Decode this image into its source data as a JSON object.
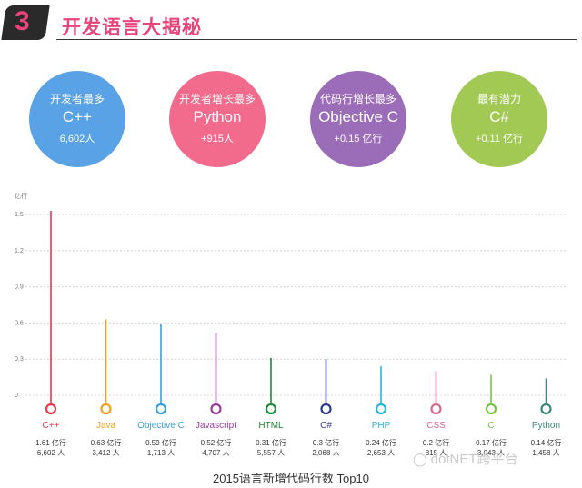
{
  "header": {
    "number": "3",
    "title": "开发语言大揭秘"
  },
  "stats": [
    {
      "title": "开发者最多",
      "main": "C++",
      "sub": "6,602人",
      "color": "#5aa2e6"
    },
    {
      "title": "开发者增长最多",
      "main": "Python",
      "sub": "+915人",
      "color": "#f26b8d"
    },
    {
      "title": "代码行增长最多",
      "main": "Objective C",
      "sub": "+0.15 亿行",
      "color": "#9b6cb8"
    },
    {
      "title": "最有潜力",
      "main": "C#",
      "sub": "+0.11 亿行",
      "color": "#a3c955"
    }
  ],
  "chart_data": {
    "type": "bar",
    "title": "2015语言新增代码行数 Top10",
    "ylabel": "亿行",
    "ylim": [
      0,
      1.5
    ],
    "yticks": [
      0,
      0.3,
      0.6,
      0.9,
      1.2,
      1.5
    ],
    "grid": true,
    "categories": [
      "C++",
      "Java",
      "Objective C",
      "Javascript",
      "HTML",
      "C#",
      "PHP",
      "CSS",
      "C",
      "Python"
    ],
    "values": [
      1.61,
      0.63,
      0.59,
      0.52,
      0.31,
      0.3,
      0.24,
      0.2,
      0.17,
      0.14
    ],
    "value_labels": [
      "1.61 亿行",
      "0.63 亿行",
      "0.59 亿行",
      "0.52 亿行",
      "0.31 亿行",
      "0.3 亿行",
      "0.24 亿行",
      "0.2 亿行",
      "0.17 亿行",
      "0.14 亿行"
    ],
    "developer_labels": [
      "6,602 人",
      "3,412 人",
      "1,713 人",
      "4,707 人",
      "5,557 人",
      "2,068 人",
      "2,653 人",
      "815 人",
      "3,043 人",
      "1,458 人"
    ],
    "colors": [
      "#e8394b",
      "#f0a020",
      "#3aa0dc",
      "#9a3c9a",
      "#1f8a3a",
      "#2f3a8a",
      "#28b4d8",
      "#d86a8a",
      "#7ac44a",
      "#3a8a7a"
    ]
  },
  "watermark": {
    "icon": "wechat-icon",
    "text": "dotNET跨平台"
  }
}
